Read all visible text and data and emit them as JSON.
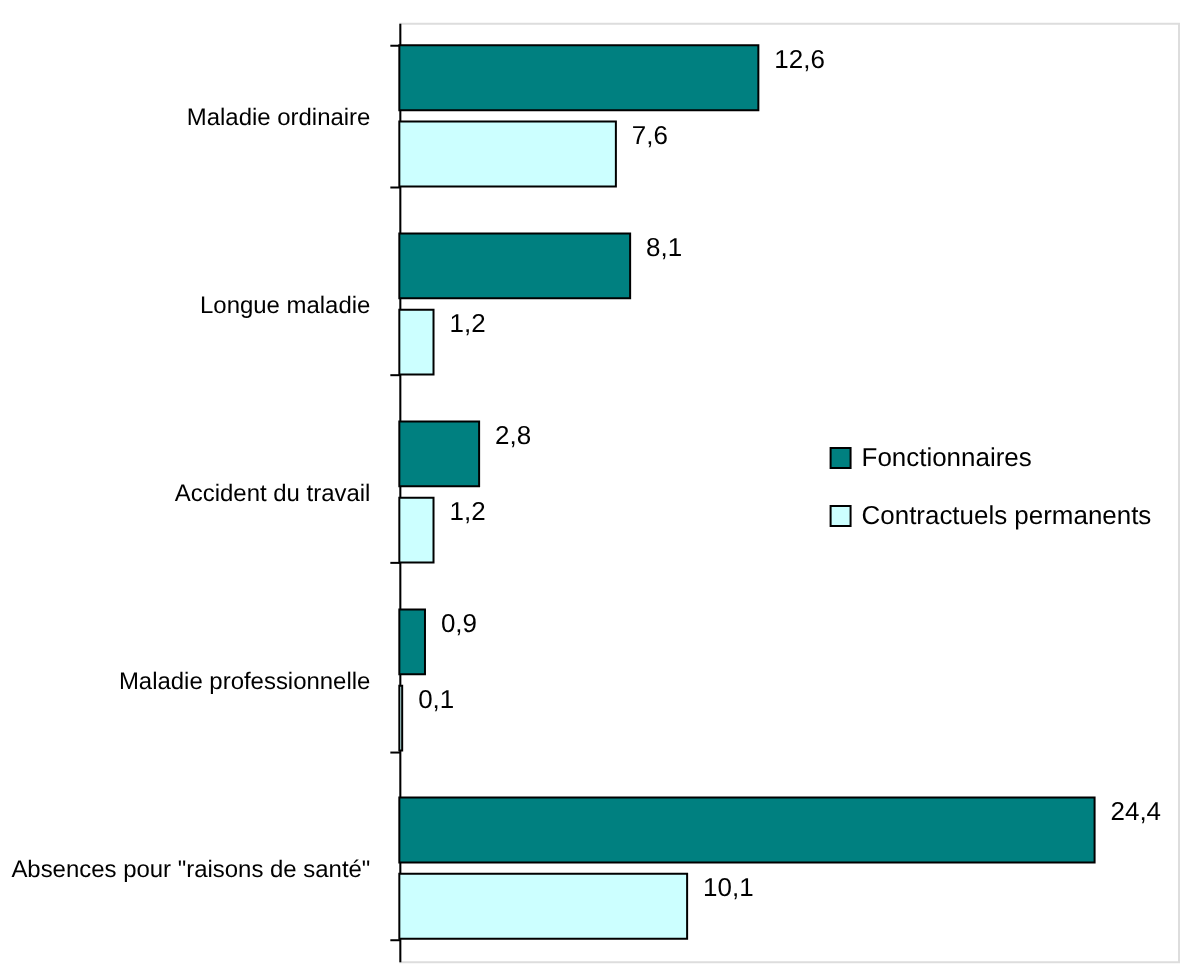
{
  "chart_data": {
    "type": "bar",
    "orientation": "horizontal",
    "categories": [
      "Maladie ordinaire",
      "Longue maladie",
      "Accident du travail",
      "Maladie professionnelle",
      "Absences pour \"raisons de santé\""
    ],
    "series": [
      {
        "name": "Fonctionnaires",
        "color": "#008080",
        "values": [
          12.6,
          8.1,
          2.8,
          0.9,
          24.4
        ],
        "value_labels": [
          "12,6",
          "8,1",
          "2,8",
          "0,9",
          "24,4"
        ]
      },
      {
        "name": "Contractuels permanents",
        "color": "#ccffff",
        "values": [
          7.6,
          1.2,
          1.2,
          0.1,
          10.1
        ],
        "value_labels": [
          "7,6",
          "1,2",
          "1,2",
          "0,1",
          "10,1"
        ]
      }
    ],
    "legend": "right"
  }
}
